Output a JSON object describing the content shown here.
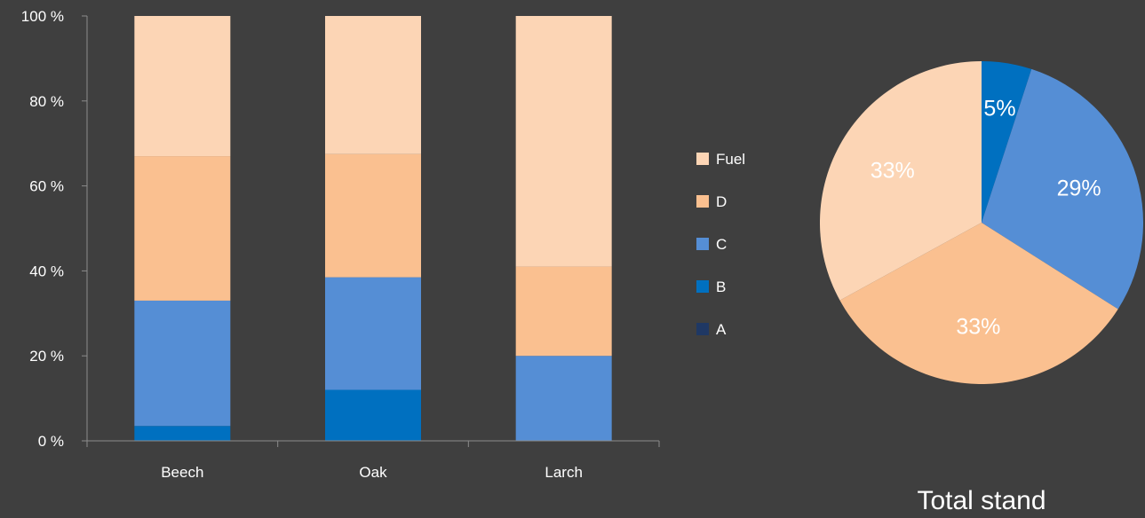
{
  "chart_data": [
    {
      "type": "bar",
      "stacked": true,
      "percent": true,
      "categories": [
        "Beech",
        "Oak",
        "Larch"
      ],
      "series": [
        {
          "name": "A",
          "color": "#1f3864",
          "values": [
            0,
            0,
            0
          ]
        },
        {
          "name": "B",
          "color": "#0070c0",
          "values": [
            3.5,
            12,
            0
          ]
        },
        {
          "name": "C",
          "color": "#558ed5",
          "values": [
            29.5,
            26.5,
            20
          ]
        },
        {
          "name": "D",
          "color": "#fac090",
          "values": [
            34,
            29,
            21
          ]
        },
        {
          "name": "Fuel",
          "color": "#fcd5b5",
          "values": [
            33,
            32.5,
            59
          ]
        }
      ],
      "ylim": [
        0,
        100
      ],
      "yticks": [
        0,
        20,
        40,
        60,
        80,
        100
      ],
      "ytick_labels": [
        "0 %",
        "20 %",
        "40 %",
        "60 %",
        "80 %",
        "100 %"
      ],
      "legend_position": "right",
      "legend_order": [
        "Fuel",
        "D",
        "C",
        "B",
        "A"
      ],
      "grid": false
    },
    {
      "type": "pie",
      "title": "Total stand",
      "slices": [
        {
          "name": "B",
          "value": 5,
          "label": "5%",
          "color": "#0070c0",
          "label_color": "#ffffff"
        },
        {
          "name": "C",
          "value": 29,
          "label": "29%",
          "color": "#558ed5",
          "label_color": "#ffffff"
        },
        {
          "name": "D",
          "value": 33,
          "label": "33%",
          "color": "#fac090",
          "label_color": "#ffffff"
        },
        {
          "name": "Fuel",
          "value": 33,
          "label": "33%",
          "color": "#fcd5b5",
          "label_color": "#ffffff"
        }
      ]
    }
  ],
  "colors": {
    "background": "#3f3f3f",
    "axis": "#8c8c8c",
    "text": "#ffffff"
  }
}
